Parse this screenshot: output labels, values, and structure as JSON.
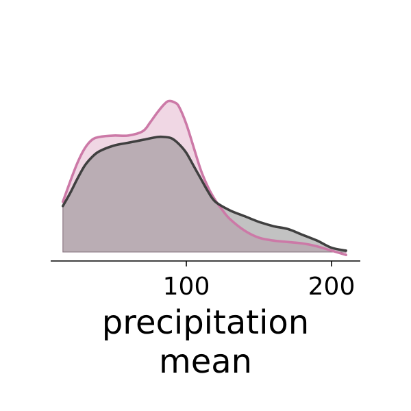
{
  "chart_data": {
    "type": "area",
    "title": "",
    "xlabel_lines": [
      "precipitation",
      "mean"
    ],
    "ylabel": "",
    "xlim": [
      5,
      220
    ],
    "x_ticks": [
      100,
      200
    ],
    "x_tick_labels": [
      "100",
      "200"
    ],
    "y_axis_visible": false,
    "grid": false,
    "legend": "none",
    "series": [
      {
        "color": "#cc79a7",
        "fill_color": "#cc79a7",
        "points": [
          [
            15,
            0.35
          ],
          [
            20,
            0.49
          ],
          [
            25,
            0.62
          ],
          [
            30,
            0.72
          ],
          [
            35,
            0.78
          ],
          [
            40,
            0.8
          ],
          [
            50,
            0.81
          ],
          [
            60,
            0.81
          ],
          [
            70,
            0.84
          ],
          [
            75,
            0.9
          ],
          [
            80,
            0.97
          ],
          [
            85,
            1.03
          ],
          [
            88,
            1.05
          ],
          [
            92,
            1.04
          ],
          [
            95,
            1.01
          ],
          [
            100,
            0.89
          ],
          [
            105,
            0.73
          ],
          [
            110,
            0.57
          ],
          [
            115,
            0.45
          ],
          [
            120,
            0.36
          ],
          [
            125,
            0.29
          ],
          [
            130,
            0.23
          ],
          [
            140,
            0.15
          ],
          [
            150,
            0.1
          ],
          [
            160,
            0.08
          ],
          [
            170,
            0.07
          ],
          [
            180,
            0.06
          ],
          [
            190,
            0.04
          ],
          [
            200,
            0.01
          ],
          [
            210,
            -0.02
          ]
        ]
      },
      {
        "color": "#404040",
        "fill_color": "#808080",
        "points": [
          [
            15,
            0.32
          ],
          [
            20,
            0.41
          ],
          [
            25,
            0.51
          ],
          [
            30,
            0.6
          ],
          [
            35,
            0.66
          ],
          [
            40,
            0.7
          ],
          [
            50,
            0.74
          ],
          [
            60,
            0.76
          ],
          [
            70,
            0.78
          ],
          [
            80,
            0.8
          ],
          [
            85,
            0.8
          ],
          [
            90,
            0.79
          ],
          [
            95,
            0.75
          ],
          [
            100,
            0.69
          ],
          [
            105,
            0.6
          ],
          [
            110,
            0.51
          ],
          [
            115,
            0.42
          ],
          [
            120,
            0.35
          ],
          [
            130,
            0.29
          ],
          [
            140,
            0.25
          ],
          [
            150,
            0.21
          ],
          [
            160,
            0.18
          ],
          [
            170,
            0.16
          ],
          [
            180,
            0.12
          ],
          [
            190,
            0.08
          ],
          [
            200,
            0.03
          ],
          [
            210,
            0.01
          ]
        ]
      }
    ]
  }
}
